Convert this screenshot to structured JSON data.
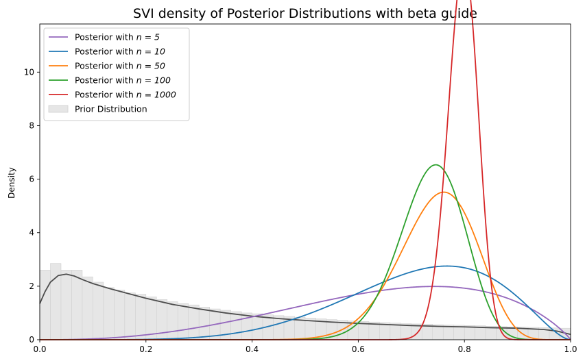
{
  "chart_data": {
    "type": "line",
    "title": "SVI density of Posterior Distributions with beta guide",
    "xlabel": "",
    "ylabel": "Density",
    "xlim": [
      0,
      1.0
    ],
    "ylim": [
      0,
      11.8
    ],
    "x_ticks": [
      "0.0",
      "0.2",
      "0.4",
      "0.6",
      "0.8",
      "1.0"
    ],
    "y_ticks": [
      "0",
      "2",
      "4",
      "6",
      "8",
      "10"
    ],
    "grid": false,
    "legend_position": "upper-left",
    "series": [
      {
        "name": "Posterior with n = 5",
        "legend_prefix": "Posterior with ",
        "legend_math": "n = 5",
        "color": "#9467bd",
        "alpha": 3.6,
        "beta": 1.9
      },
      {
        "name": "Posterior with n = 10",
        "legend_prefix": "Posterior with ",
        "legend_math": "n = 10",
        "color": "#1f77b4",
        "alpha": 6.6,
        "beta": 2.7
      },
      {
        "name": "Posterior with n = 50",
        "legend_prefix": "Posterior with ",
        "legend_math": "n = 50",
        "color": "#ff7f0e",
        "alpha": 26.5,
        "beta": 9.0
      },
      {
        "name": "Posterior with n = 100",
        "legend_prefix": "Posterior with ",
        "legend_math": "n = 100",
        "color": "#2ca02c",
        "alpha": 38.0,
        "beta": 13.6
      },
      {
        "name": "Posterior with n = 1000",
        "legend_prefix": "Posterior with ",
        "legend_math": "n = 1000",
        "color": "#d62728",
        "alpha": 160.0,
        "beta": 41.0
      }
    ],
    "prior": {
      "name": "Prior Distribution",
      "hist_color": "#e6e6e6",
      "hist_edge": "#d0d0d0",
      "kde_color": "#4d4d4d",
      "bin_width": 0.02,
      "hist_heights": [
        2.6,
        2.85,
        2.6,
        2.6,
        2.35,
        2.15,
        1.95,
        1.85,
        1.75,
        1.7,
        1.6,
        1.5,
        1.42,
        1.35,
        1.3,
        1.22,
        1.15,
        1.1,
        1.05,
        1.0,
        0.97,
        0.93,
        0.9,
        0.87,
        0.84,
        0.81,
        0.78,
        0.75,
        0.73,
        0.7,
        0.68,
        0.66,
        0.64,
        0.62,
        0.6,
        0.59,
        0.58,
        0.56,
        0.55,
        0.54,
        0.53,
        0.52,
        0.5,
        0.49,
        0.48,
        0.47,
        0.46,
        0.45,
        0.44,
        0.43
      ],
      "kde_points": [
        [
          0.0,
          1.35
        ],
        [
          0.01,
          1.8
        ],
        [
          0.02,
          2.15
        ],
        [
          0.035,
          2.4
        ],
        [
          0.05,
          2.45
        ],
        [
          0.065,
          2.38
        ],
        [
          0.08,
          2.25
        ],
        [
          0.1,
          2.1
        ],
        [
          0.13,
          1.92
        ],
        [
          0.16,
          1.76
        ],
        [
          0.2,
          1.55
        ],
        [
          0.25,
          1.32
        ],
        [
          0.3,
          1.15
        ],
        [
          0.35,
          1.0
        ],
        [
          0.4,
          0.88
        ],
        [
          0.45,
          0.79
        ],
        [
          0.5,
          0.72
        ],
        [
          0.55,
          0.66
        ],
        [
          0.6,
          0.61
        ],
        [
          0.65,
          0.57
        ],
        [
          0.7,
          0.53
        ],
        [
          0.75,
          0.5
        ],
        [
          0.8,
          0.48
        ],
        [
          0.85,
          0.45
        ],
        [
          0.9,
          0.43
        ],
        [
          0.95,
          0.38
        ],
        [
          0.975,
          0.32
        ],
        [
          1.0,
          0.2
        ]
      ]
    }
  }
}
